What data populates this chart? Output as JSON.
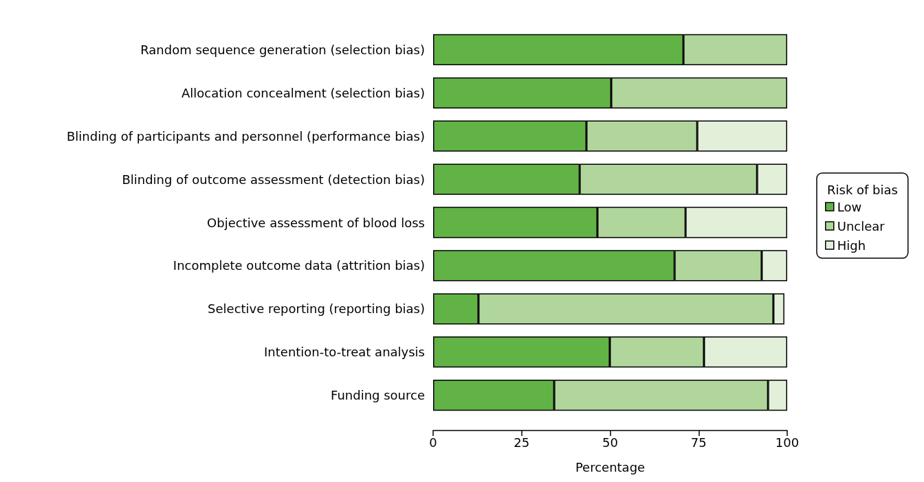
{
  "chart_data": {
    "type": "bar",
    "orientation": "horizontal",
    "stacked": true,
    "xlabel": "Percentage",
    "legend_title": "Risk of bias",
    "legend": "right",
    "categories": [
      "Random sequence generation (selection bias)",
      "Allocation concealment (selection bias)",
      "Blinding of participants and personnel (performance bias)",
      "Blinding of outcome assessment (detection bias)",
      "Objective assessment of blood loss",
      "Incomplete outcome data (attrition bias)",
      "Selective reporting (reporting bias)",
      "Intention-to-treat analysis",
      "Funding source"
    ],
    "series": [
      {
        "name": "Low",
        "color": "#62b346",
        "values": [
          70.7,
          50.3,
          43.3,
          41.4,
          46.4,
          68.2,
          12.8,
          49.9,
          34.2
        ]
      },
      {
        "name": "Unclear",
        "color": "#b0d69c",
        "values": [
          29.3,
          49.7,
          31.3,
          50.1,
          24.9,
          24.6,
          83.3,
          26.6,
          60.4
        ]
      },
      {
        "name": "High",
        "color": "#e2f0da",
        "values": [
          null,
          null,
          25.4,
          8.5,
          28.7,
          7.2,
          3.1,
          23.5,
          5.4
        ]
      }
    ],
    "xlim": [
      0,
      100
    ],
    "xticks": [
      0,
      25,
      50,
      75,
      100
    ]
  }
}
